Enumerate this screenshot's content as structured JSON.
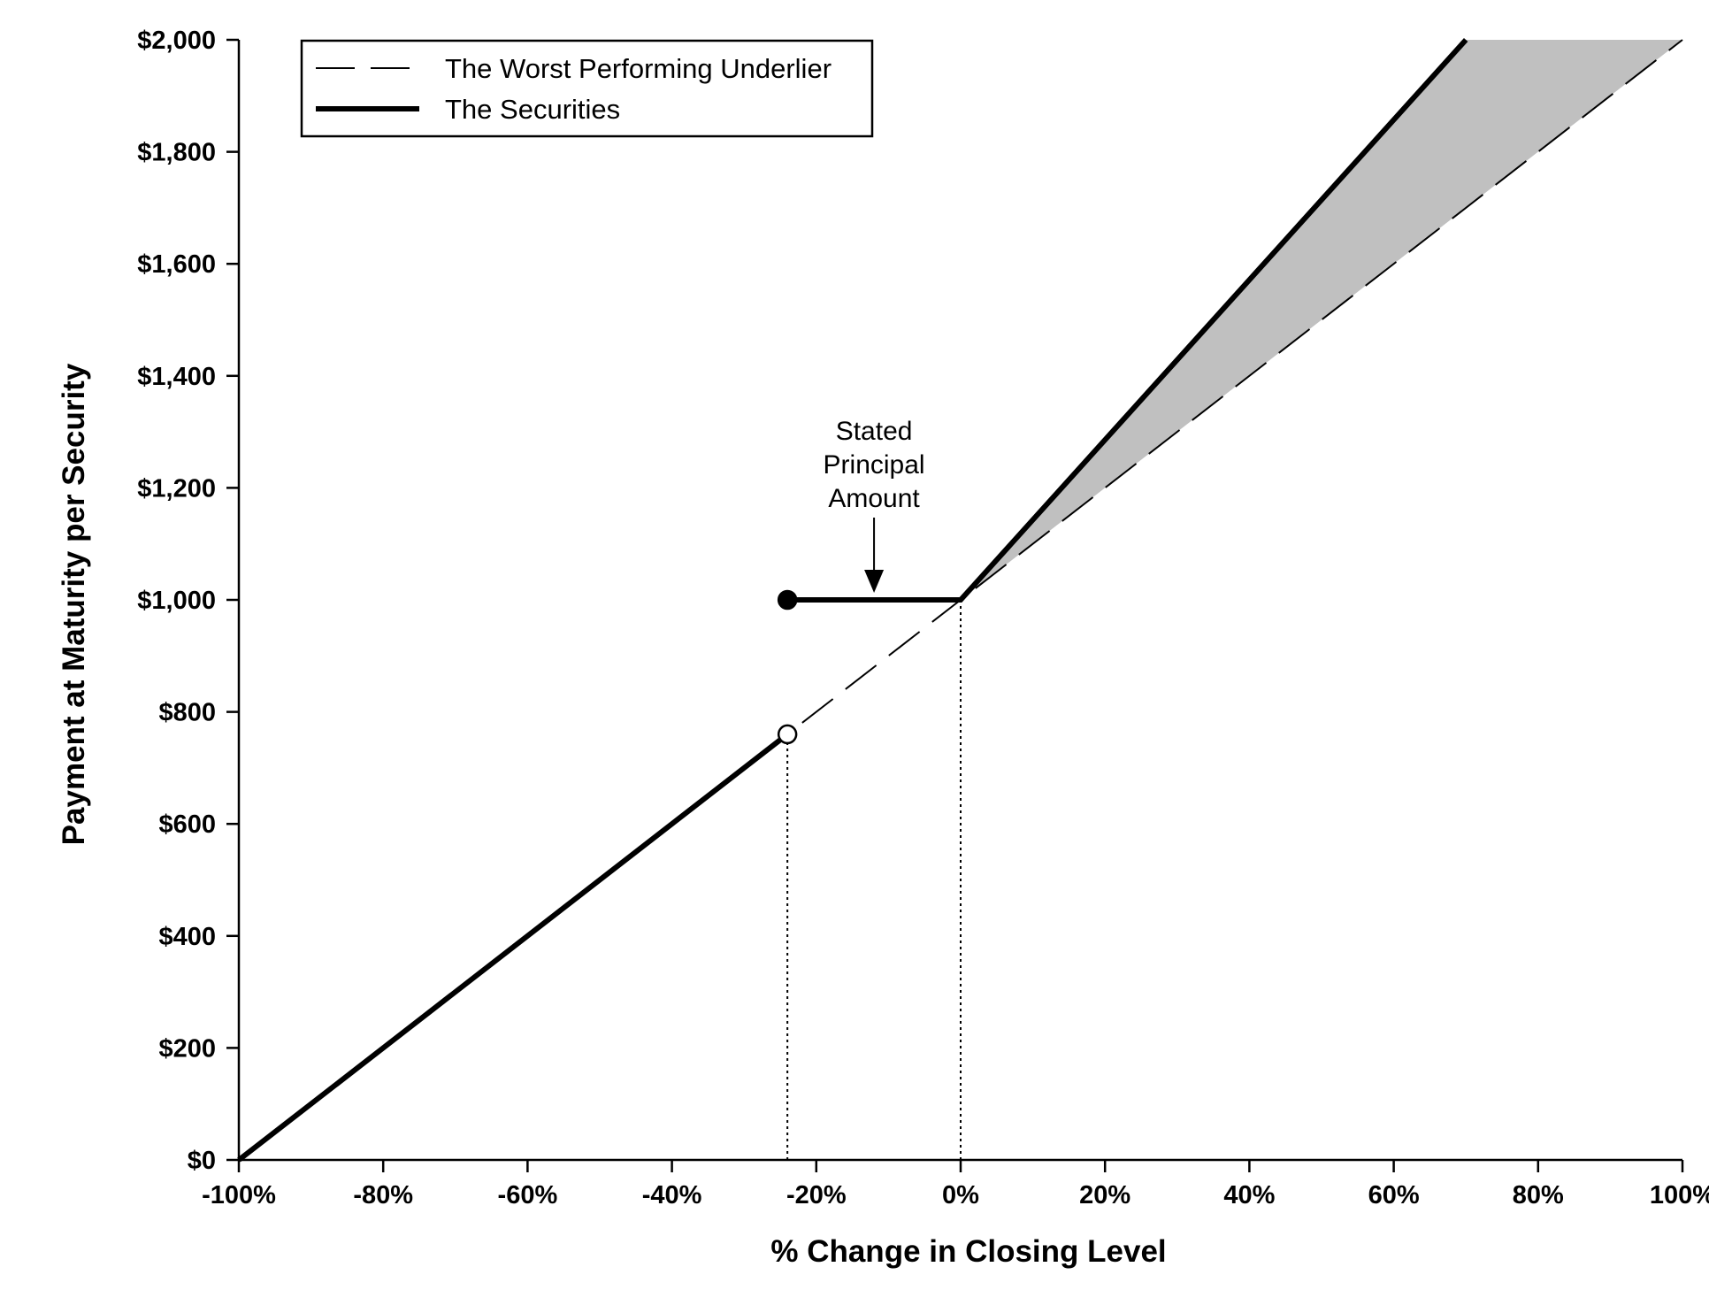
{
  "chart_data": {
    "type": "line",
    "xlabel": "% Change in Closing Level",
    "ylabel": "Payment at Maturity per Security",
    "xlim": [
      -100,
      100
    ],
    "ylim": [
      0,
      2000
    ],
    "x_ticks": [
      -100,
      -80,
      -60,
      -40,
      -20,
      0,
      20,
      40,
      60,
      80,
      100
    ],
    "x_tick_labels": [
      "-100%",
      "-80%",
      "-60%",
      "-40%",
      "-20%",
      "0%",
      "20%",
      "40%",
      "60%",
      "80%",
      "100%"
    ],
    "y_ticks": [
      0,
      200,
      400,
      600,
      800,
      1000,
      1200,
      1400,
      1600,
      1800,
      2000
    ],
    "y_tick_labels": [
      "$0",
      "$200",
      "$400",
      "$600",
      "$800",
      "$1,000",
      "$1,200",
      "$1,400",
      "$1,600",
      "$1,800",
      "$2,000"
    ],
    "grid": false,
    "legend_position": "top-left",
    "series": [
      {
        "name": "The Worst Performing Underlier",
        "style": "dashed",
        "color": "#000000",
        "points": [
          [
            -100,
            0
          ],
          [
            100,
            2000
          ]
        ]
      },
      {
        "name": "The Securities",
        "style": "solid-thick",
        "color": "#000000",
        "segments": [
          [
            [
              -100,
              0
            ],
            [
              -24,
              760
            ]
          ],
          [
            [
              -24,
              1000
            ],
            [
              0,
              1000
            ],
            [
              70,
              2000
            ]
          ]
        ]
      }
    ],
    "markers": [
      {
        "x": -24,
        "y": 1000,
        "fill": "filled"
      },
      {
        "x": -24,
        "y": 760,
        "fill": "open"
      }
    ],
    "reference_lines": [
      {
        "x": -24,
        "y_from": 0,
        "y_to": 760,
        "style": "dotted"
      },
      {
        "x": 0,
        "y_from": 0,
        "y_to": 1000,
        "style": "dotted"
      }
    ],
    "shaded_region": {
      "color": "#c0c0c0",
      "polygon": [
        [
          0,
          1000
        ],
        [
          70,
          2000
        ],
        [
          100,
          2000
        ]
      ]
    },
    "annotations": [
      {
        "lines": [
          "Stated",
          "Principal",
          "Amount"
        ],
        "arrow_target": [
          -12,
          1000
        ]
      }
    ]
  }
}
